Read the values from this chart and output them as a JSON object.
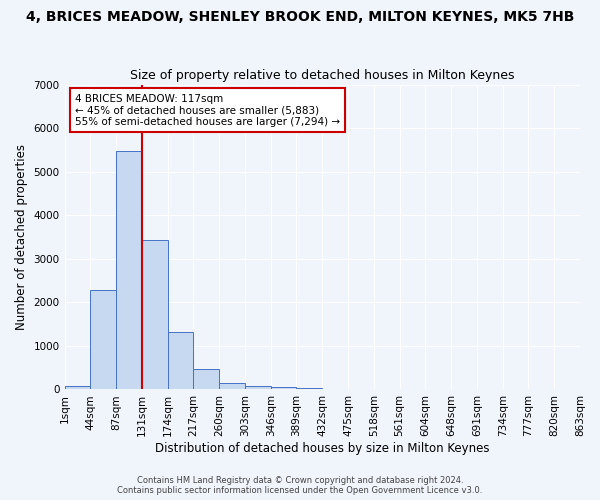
{
  "title": "4, BRICES MEADOW, SHENLEY BROOK END, MILTON KEYNES, MK5 7HB",
  "subtitle": "Size of property relative to detached houses in Milton Keynes",
  "xlabel": "Distribution of detached houses by size in Milton Keynes",
  "ylabel": "Number of detached properties",
  "footnote1": "Contains HM Land Registry data © Crown copyright and database right 2024.",
  "footnote2": "Contains public sector information licensed under the Open Government Licence v3.0.",
  "bar_values": [
    75,
    2280,
    5480,
    3440,
    1310,
    460,
    155,
    85,
    55,
    30,
    0,
    0,
    0,
    0,
    0,
    0,
    0,
    0,
    0,
    0
  ],
  "bar_labels": [
    "1sqm",
    "44sqm",
    "87sqm",
    "131sqm",
    "174sqm",
    "217sqm",
    "260sqm",
    "303sqm",
    "346sqm",
    "389sqm",
    "432sqm",
    "475sqm",
    "518sqm",
    "561sqm",
    "604sqm",
    "648sqm",
    "691sqm",
    "734sqm",
    "777sqm",
    "820sqm"
  ],
  "extra_tick_label": "863sqm",
  "bar_color": "#c6d9f0",
  "bar_edge_color": "#4472c4",
  "vline_pos": 2.5,
  "vline_color": "#cc0000",
  "annotation_text": "4 BRICES MEADOW: 117sqm\n← 45% of detached houses are smaller (5,883)\n55% of semi-detached houses are larger (7,294) →",
  "annotation_box_color": "#ffffff",
  "annotation_box_edge": "#cc0000",
  "ylim": [
    0,
    7000
  ],
  "yticks": [
    0,
    1000,
    2000,
    3000,
    4000,
    5000,
    6000,
    7000
  ],
  "bg_color": "#f0f4fb",
  "grid_color": "#ffffff",
  "title_fontsize": 10,
  "subtitle_fontsize": 9,
  "axis_label_fontsize": 8.5,
  "tick_fontsize": 7.5
}
